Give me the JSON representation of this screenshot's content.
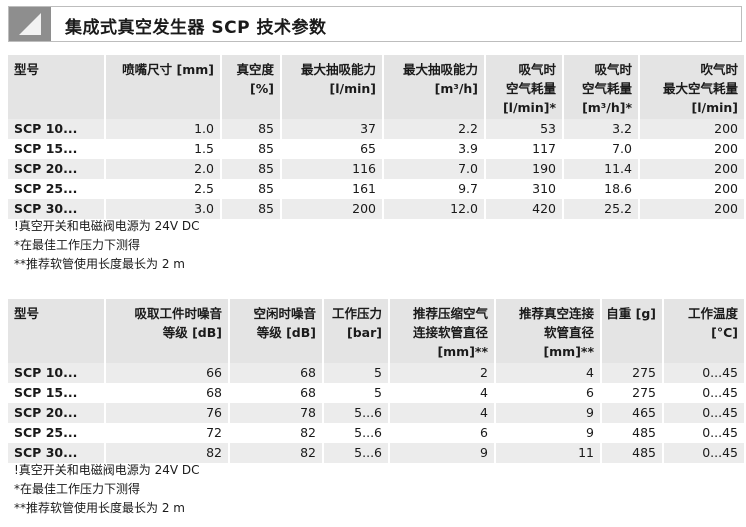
{
  "header": {
    "title": "集成式真空发生器 SCP 技术参数",
    "logo_icon": "corner-wedge-icon",
    "logo_color": "#8e8e8e"
  },
  "table1": {
    "headers": [
      [
        "型号"
      ],
      [
        "喷嘴尺寸 [mm]"
      ],
      [
        "真空度",
        "[%]"
      ],
      [
        "最大抽吸能力",
        "[l/min]"
      ],
      [
        "最大抽吸能力",
        "[m³/h]"
      ],
      [
        "吸气时",
        "空气耗量",
        "[l/min]*"
      ],
      [
        "吸气时",
        "空气耗量",
        "[m³/h]*"
      ],
      [
        "吹气时",
        "最大空气耗量",
        "[l/min]"
      ]
    ],
    "rows": [
      [
        "SCP 10...",
        "1.0",
        "85",
        "37",
        "2.2",
        "53",
        "3.2",
        "200"
      ],
      [
        "SCP 15...",
        "1.5",
        "85",
        "65",
        "3.9",
        "117",
        "7.0",
        "200"
      ],
      [
        "SCP 20...",
        "2.0",
        "85",
        "116",
        "7.0",
        "190",
        "11.4",
        "200"
      ],
      [
        "SCP 25...",
        "2.5",
        "85",
        "161",
        "9.7",
        "310",
        "18.6",
        "200"
      ],
      [
        "SCP 30...",
        "3.0",
        "85",
        "200",
        "12.0",
        "420",
        "25.2",
        "200"
      ]
    ],
    "notes": [
      "!真空开关和电磁阀电源为 24V DC",
      "*在最佳工作压力下测得",
      "**推荐软管使用长度最长为 2 m"
    ]
  },
  "table2": {
    "headers": [
      [
        "型号"
      ],
      [
        "吸取工件时噪音",
        "等级 [dB]"
      ],
      [
        "空闲时噪音",
        "等级 [dB]"
      ],
      [
        "工作压力",
        "[bar]"
      ],
      [
        "推荐压缩空气",
        "连接软管直径",
        "[mm]**"
      ],
      [
        "推荐真空连接",
        "软管直径",
        "[mm]**"
      ],
      [
        "自重 [g]"
      ],
      [
        "工作温度",
        "[°C]"
      ]
    ],
    "rows": [
      [
        "SCP 10...",
        "66",
        "68",
        "5",
        "2",
        "4",
        "275",
        "0...45"
      ],
      [
        "SCP 15...",
        "68",
        "68",
        "5",
        "4",
        "6",
        "275",
        "0...45"
      ],
      [
        "SCP 20...",
        "76",
        "78",
        "5...6",
        "4",
        "9",
        "465",
        "0...45"
      ],
      [
        "SCP 25...",
        "72",
        "82",
        "5...6",
        "6",
        "9",
        "485",
        "0...45"
      ],
      [
        "SCP 30...",
        "82",
        "82",
        "5...6",
        "9",
        "11",
        "485",
        "0...45"
      ]
    ],
    "notes": [
      "!真空开关和电磁阀电源为 24V DC",
      "*在最佳工作压力下测得",
      "**推荐软管使用长度最长为 2 m"
    ]
  },
  "colors": {
    "header_bg": "#e4e4e4",
    "row_shade": "#ececec",
    "text": "#1a1a1a"
  }
}
